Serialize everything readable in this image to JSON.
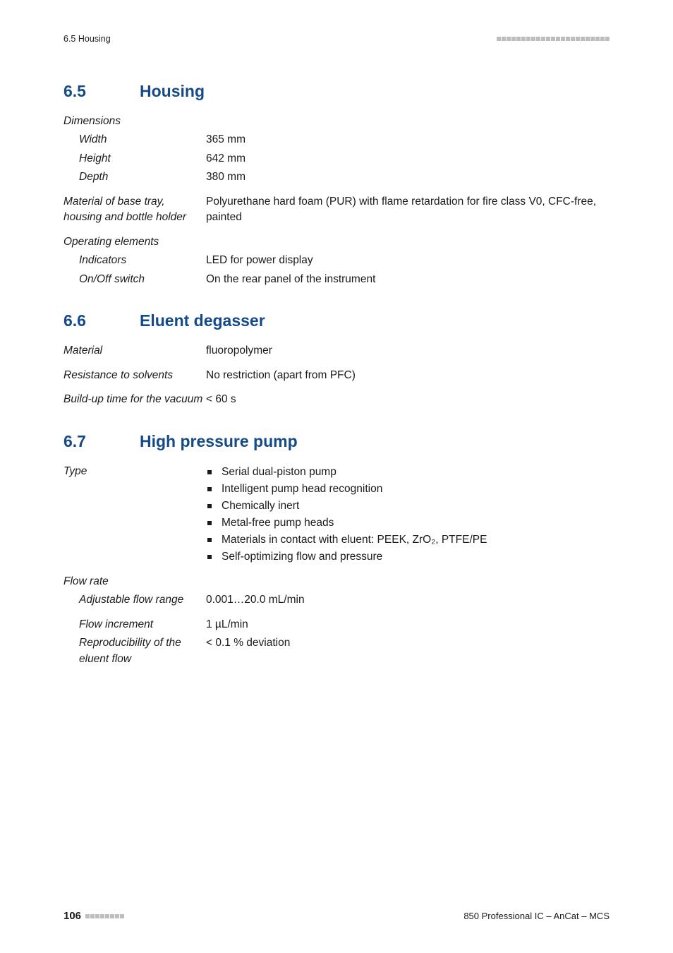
{
  "colors": {
    "heading": "#144a8a",
    "text": "#1a1a1a",
    "square": "#bdbdbd",
    "background": "#ffffff"
  },
  "header": {
    "left": "6.5 Housing",
    "square_count": 23
  },
  "sections": [
    {
      "num": "6.5",
      "title": "Housing",
      "rows": [
        {
          "label": "Dimensions",
          "indent": false,
          "value": ""
        },
        {
          "label": "Width",
          "indent": true,
          "value": "365 mm"
        },
        {
          "label": "Height",
          "indent": true,
          "value": "642 mm"
        },
        {
          "label": "Depth",
          "indent": true,
          "value": "380 mm"
        },
        {
          "label": "Material of base tray, housing and bottle holder",
          "indent": false,
          "value": "Polyurethane hard foam (PUR) with flame retardation for fire class V0, CFC-free, painted",
          "gap": true
        },
        {
          "label": "Operating elements",
          "indent": false,
          "value": "",
          "gap": true
        },
        {
          "label": "Indicators",
          "indent": true,
          "value": "LED for power display"
        },
        {
          "label": "On/Off switch",
          "indent": true,
          "value": "On the rear panel of the instrument"
        }
      ]
    },
    {
      "num": "6.6",
      "title": "Eluent degasser",
      "rows": [
        {
          "label": "Material",
          "indent": false,
          "value": "fluoropolymer"
        },
        {
          "label": "Resistance to solvents",
          "indent": false,
          "value": "No restriction (apart from PFC)",
          "gap": true
        },
        {
          "label": "Build-up time for the vacuum",
          "indent": false,
          "value": "< 60 s",
          "gap": true
        }
      ]
    },
    {
      "num": "6.7",
      "title": "High pressure pump",
      "rows": [
        {
          "label": "Type",
          "indent": false,
          "bullets": [
            "Serial dual-piston pump",
            "Intelligent pump head recognition",
            "Chemically inert",
            "Metal-free pump heads",
            "Materials in contact with eluent: PEEK, ZrO₂, PTFE/PE",
            "Self-optimizing flow and pressure"
          ]
        },
        {
          "label": "Flow rate",
          "indent": false,
          "value": "",
          "gap": true
        },
        {
          "label": "Adjustable flow range",
          "indent": true,
          "value": "0.001…20.0 mL/min"
        },
        {
          "label": "Flow increment",
          "indent": true,
          "value": "1 µL/min",
          "gap": true
        },
        {
          "label": "Reproducibility of the eluent flow",
          "indent": true,
          "value": "< 0.1 % deviation"
        }
      ]
    }
  ],
  "footer": {
    "page": "106",
    "square_count": 8,
    "right": "850 Professional IC – AnCat – MCS"
  }
}
